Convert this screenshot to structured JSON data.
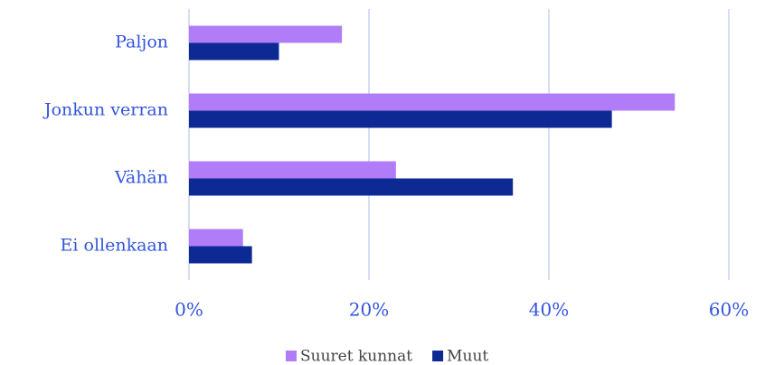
{
  "chart_data": {
    "type": "hbar",
    "categories": [
      "Paljon",
      "Jonkun verran",
      "Vähän",
      "Ei ollenkaan"
    ],
    "series": [
      {
        "name": "Suuret kunnat",
        "color": "#b07cf7",
        "values": [
          17,
          54,
          23,
          6
        ]
      },
      {
        "name": "Muut",
        "color": "#0d2a94",
        "values": [
          10,
          47,
          36,
          7
        ]
      }
    ],
    "xlim": [
      0,
      60
    ],
    "xticks": [
      {
        "value": 0,
        "label": "0%"
      },
      {
        "value": 20,
        "label": "20%"
      },
      {
        "value": 40,
        "label": "40%"
      },
      {
        "value": 60,
        "label": "60%"
      }
    ],
    "grid": true,
    "legend": "bottom"
  }
}
